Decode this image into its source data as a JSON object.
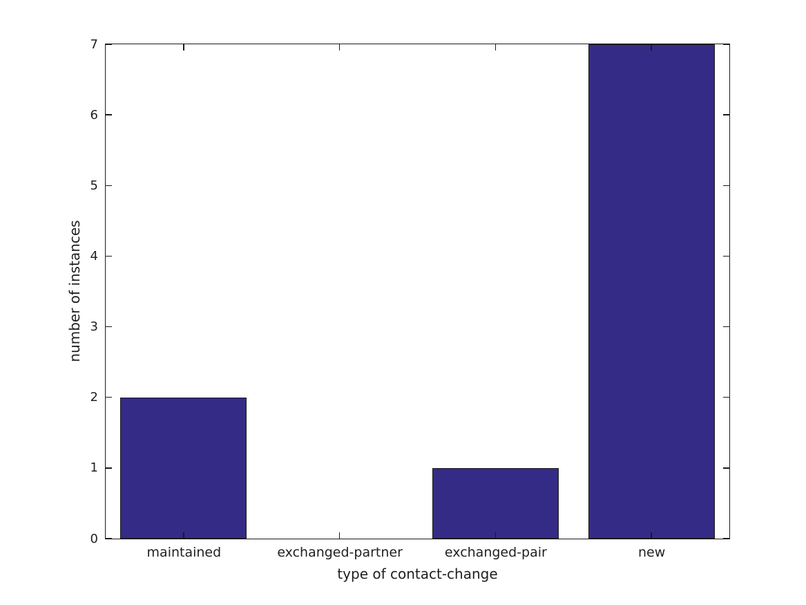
{
  "chart_data": {
    "type": "bar",
    "title": "",
    "categories": [
      "maintained",
      "exchanged-partner",
      "exchanged-pair",
      "new"
    ],
    "values": [
      2,
      0,
      1,
      7
    ],
    "xlabel": "type of contact-change",
    "ylabel": "number of instances",
    "ylim": [
      0,
      7
    ],
    "yticks": [
      0,
      1,
      2,
      3,
      4,
      5,
      6,
      7
    ],
    "bar_width_fraction": 0.81,
    "grid": false,
    "legend": "none",
    "tick_style": "inward-mirrored",
    "colors": {
      "bar_fill": "#332b86",
      "bar_edge": "#1a1a1a",
      "axis": "#1a1a1a",
      "text": "#1f1f1f",
      "background": "#ffffff"
    }
  }
}
